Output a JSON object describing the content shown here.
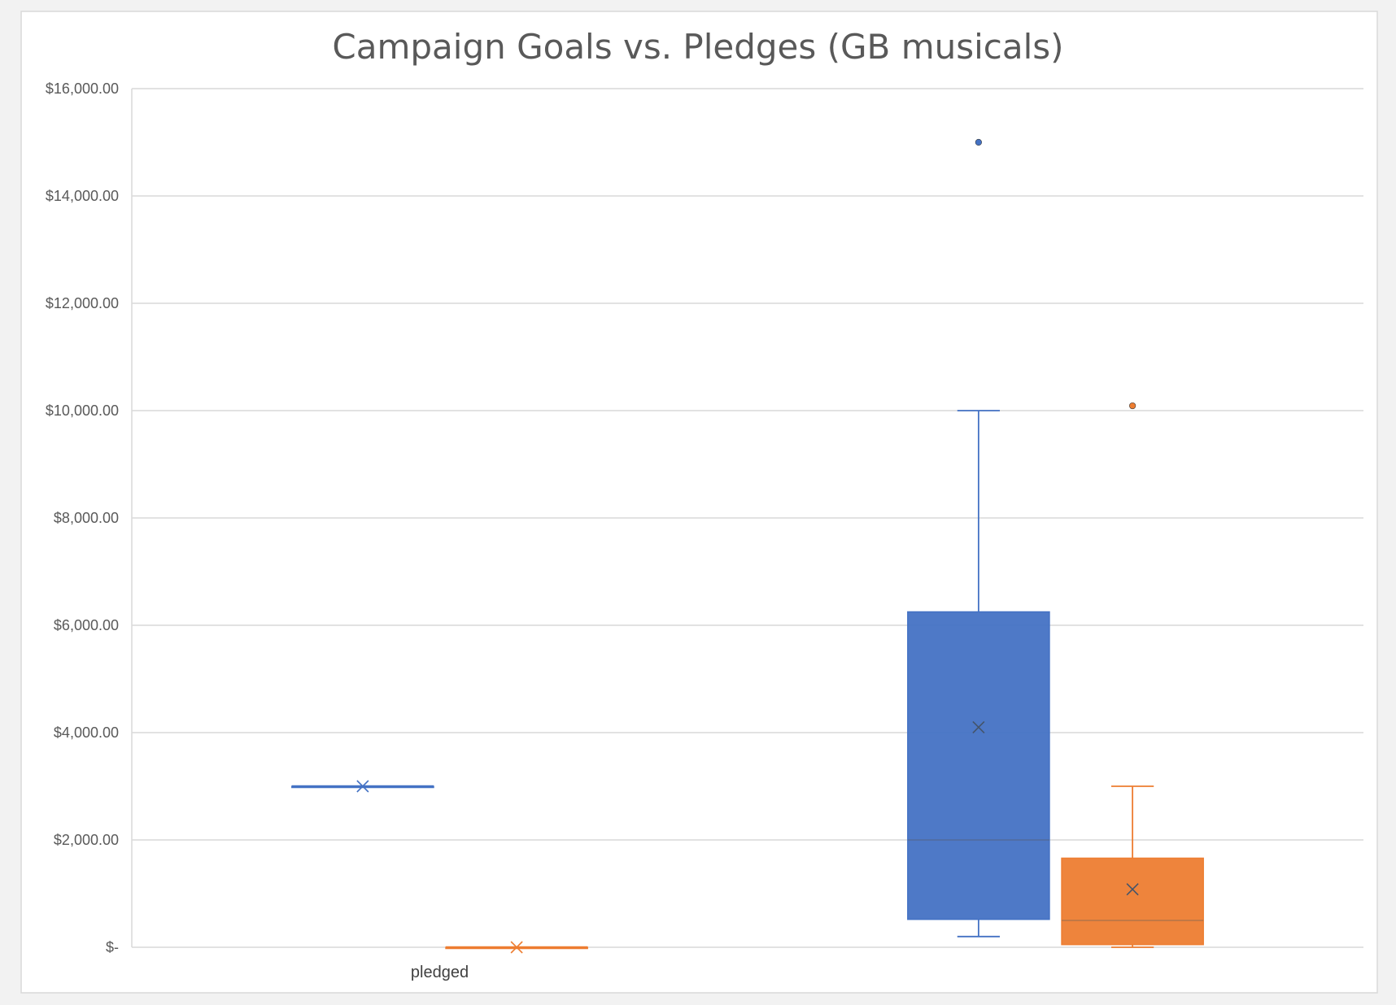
{
  "chart_data": {
    "type": "box",
    "title": "Campaign Goals vs. Pledges (GB musicals)",
    "xlabel": "",
    "ylabel": "",
    "ylim": [
      0,
      16000
    ],
    "y_ticks": [
      0,
      2000,
      4000,
      6000,
      8000,
      10000,
      12000,
      14000,
      16000
    ],
    "y_tick_labels": [
      "$-",
      "$2,000.00",
      "$4,000.00",
      "$6,000.00",
      "$8,000.00",
      "$10,000.00",
      "$12,000.00",
      "$14,000.00",
      "$16,000.00"
    ],
    "categories": [
      "pledged",
      ""
    ],
    "grid": true,
    "legend": "none",
    "series": [
      {
        "color": "#4472c4",
        "boxes": [
          {
            "min": 3000,
            "q1": 3000,
            "median": 3000,
            "q3": 3000,
            "max": 3000,
            "mean": 3000,
            "outliers": []
          },
          {
            "min": 200,
            "q1": 520,
            "median": 2000,
            "q3": 6250,
            "max": 10000,
            "mean": 4100,
            "outliers": [
              15000
            ]
          }
        ]
      },
      {
        "color": "#ed7d31",
        "boxes": [
          {
            "min": 0,
            "q1": 0,
            "median": 0,
            "q3": 0,
            "max": 0,
            "mean": 0,
            "outliers": []
          },
          {
            "min": 0,
            "q1": 50,
            "median": 500,
            "q3": 1660,
            "max": 3000,
            "mean": 1080,
            "outliers": [
              10090
            ]
          }
        ]
      }
    ]
  }
}
